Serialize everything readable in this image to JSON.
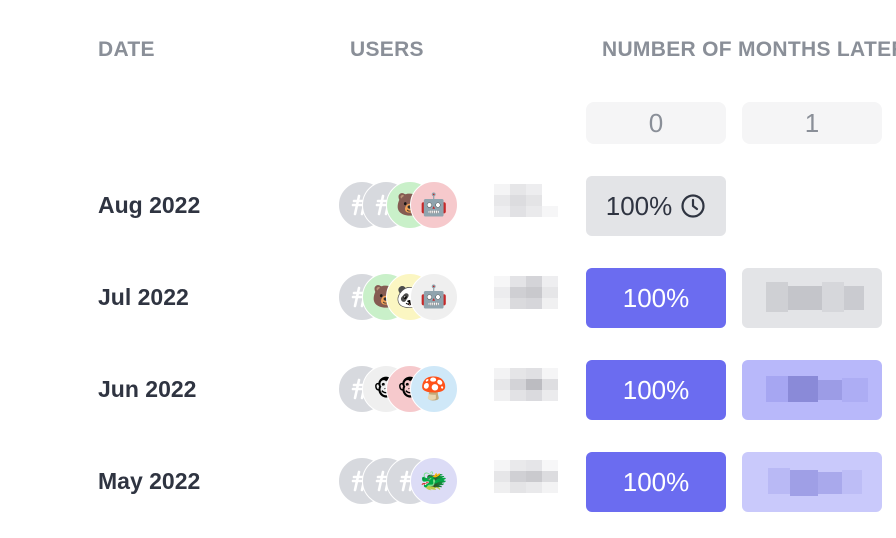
{
  "headers": {
    "date": "DATE",
    "users": "USERS",
    "months_later": "NUMBER OF MONTHS LATER"
  },
  "month_columns": [
    "0",
    "1"
  ],
  "rows": [
    {
      "date": "Aug 2022",
      "month0": "100%",
      "month0_status": "in-progress",
      "month0_icon": "clock-icon",
      "avatars": [
        "ghost-user-icon",
        "ghost-user-icon",
        "bear-avatar",
        "robot-avatar"
      ]
    },
    {
      "date": "Jul 2022",
      "month0": "100%",
      "month0_status": "complete",
      "avatars": [
        "ghost-user-icon",
        "bear-avatar",
        "panda-avatar",
        "robot-avatar"
      ]
    },
    {
      "date": "Jun 2022",
      "month0": "100%",
      "month0_status": "complete",
      "avatars": [
        "ghost-user-icon",
        "monkey-avatar",
        "monkey-avatar",
        "mushroom-avatar"
      ]
    },
    {
      "date": "May 2022",
      "month0": "100%",
      "month0_status": "complete",
      "avatars": [
        "ghost-user-icon",
        "ghost-user-icon",
        "ghost-user-icon",
        "dragon-avatar"
      ]
    }
  ],
  "colors": {
    "accent": "#6b6cf0",
    "accent_light": "#c9c9fb",
    "pending": "#e3e4e7",
    "header_text": "#8a8f98",
    "body_text": "#2f3441"
  }
}
